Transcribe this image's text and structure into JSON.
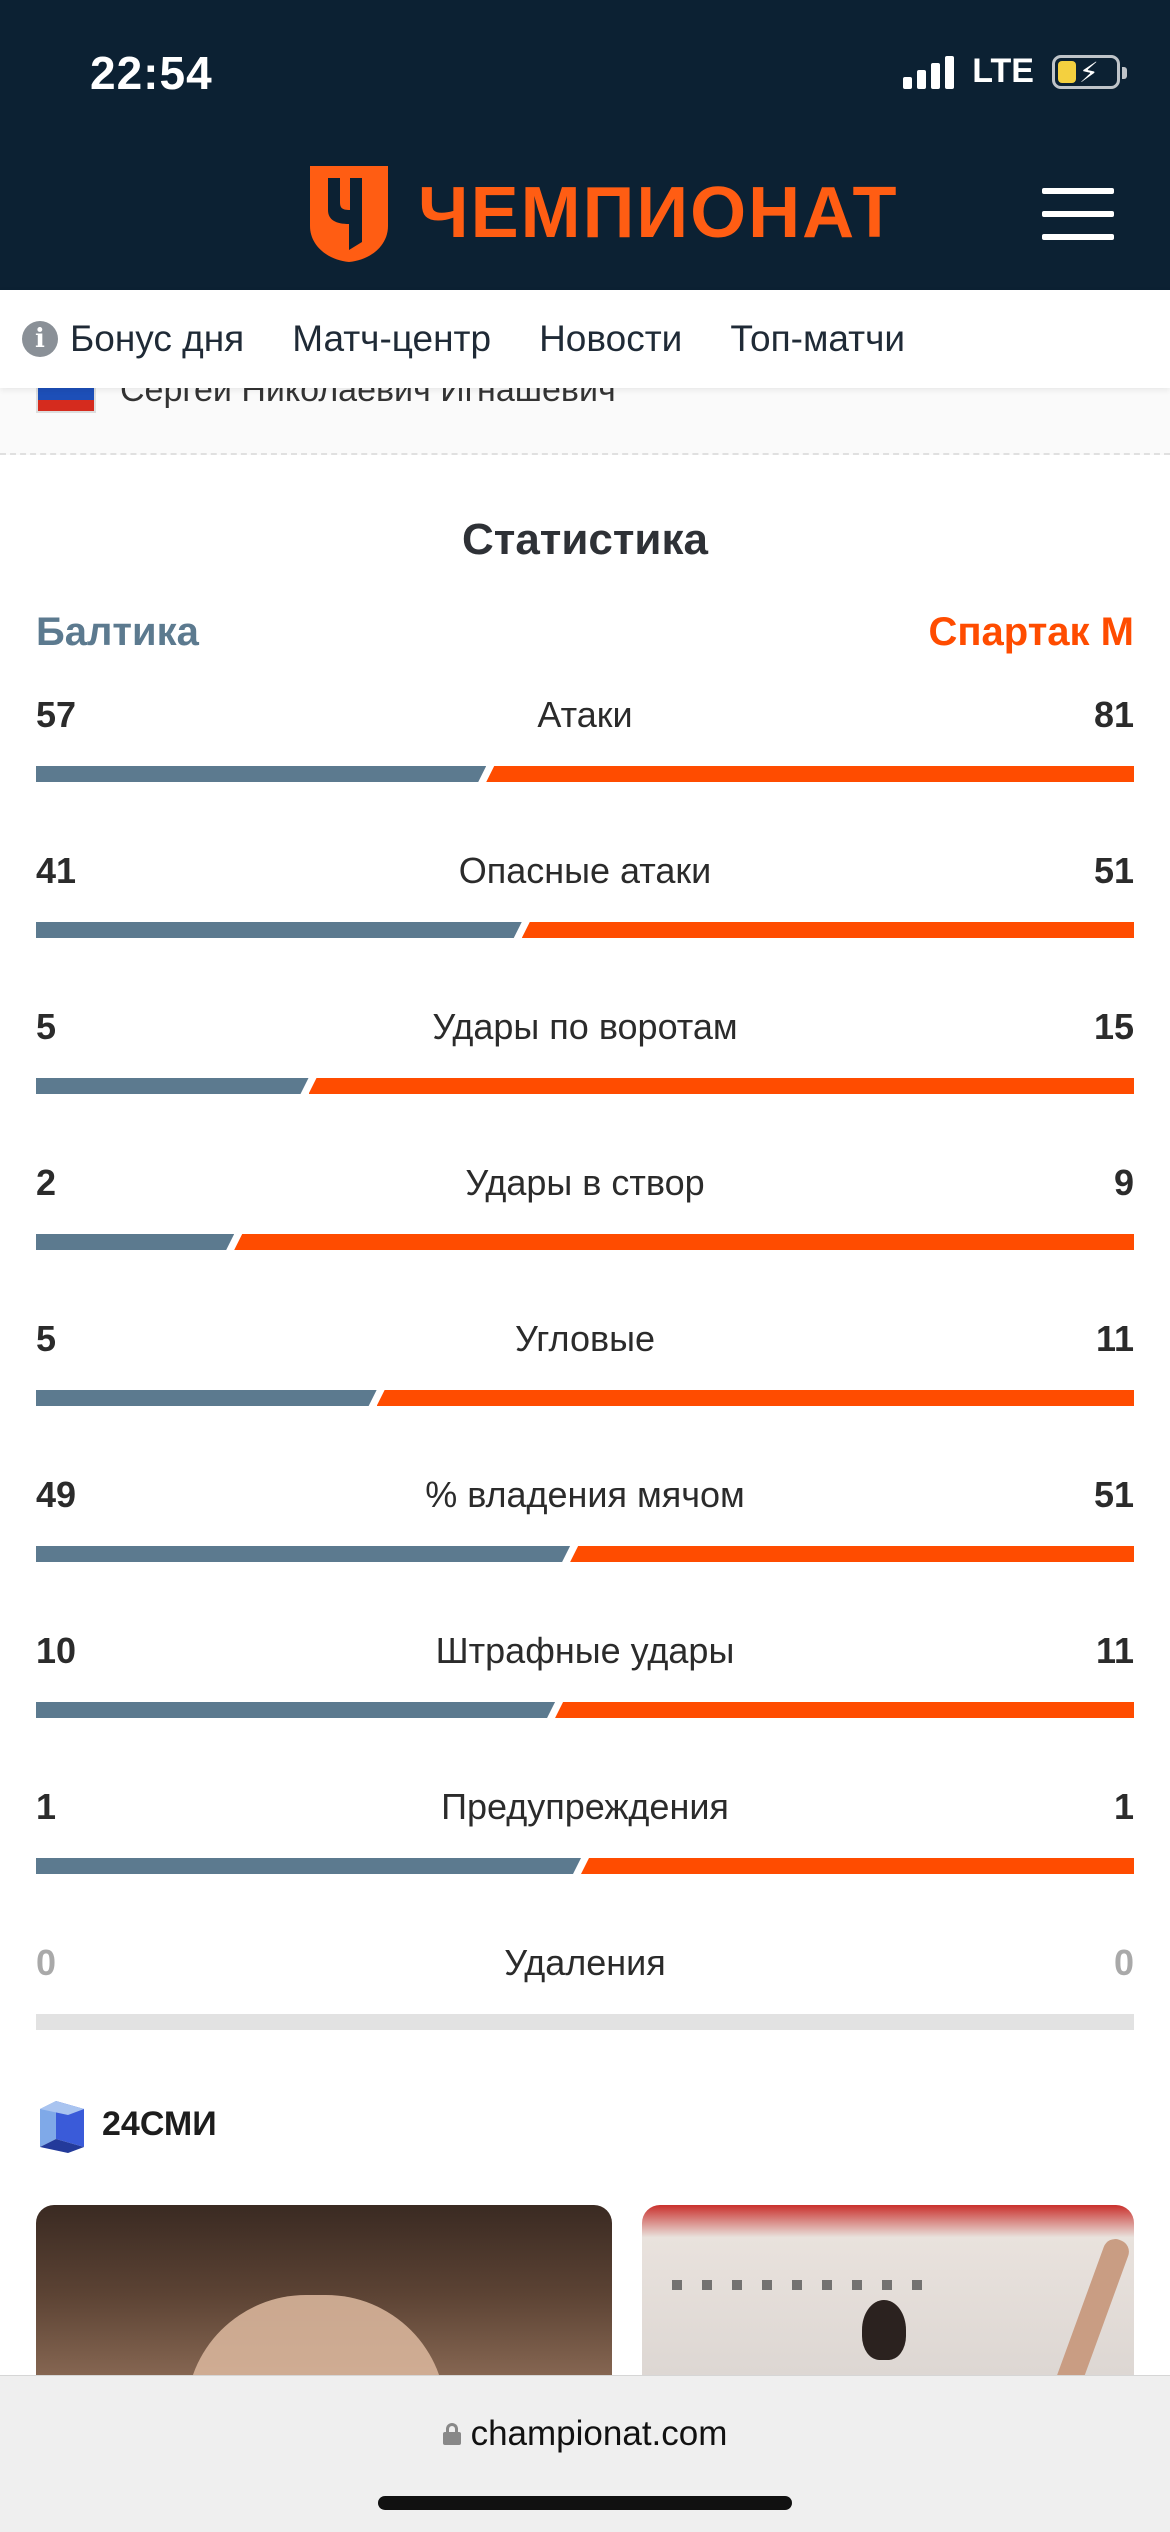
{
  "status_bar": {
    "time": "22:54",
    "network": "LTE"
  },
  "header": {
    "logo_text": "ЧЕМПИОНАТ",
    "colors": {
      "background": "#0c2133",
      "brand": "#ff5d13"
    }
  },
  "nav": {
    "items": [
      {
        "label": "Бонус дня",
        "icon": "info-icon"
      },
      {
        "label": "Матч-центр"
      },
      {
        "label": "Новости"
      },
      {
        "label": "Топ-матчи"
      }
    ]
  },
  "referee": {
    "name": "Сергей Николаевич Игнашевич",
    "flag": "russia-flag-icon"
  },
  "statistics": {
    "title": "Статистика",
    "home_team": "Балтика",
    "away_team": "Спартак М",
    "colors": {
      "home": "#5c7a8f",
      "away": "#ff4c00"
    },
    "rows": [
      {
        "label": "Атаки",
        "home": "57",
        "away": "81"
      },
      {
        "label": "Опасные атаки",
        "home": "41",
        "away": "51"
      },
      {
        "label": "Удары по воротам",
        "home": "5",
        "away": "15"
      },
      {
        "label": "Удары в створ",
        "home": "2",
        "away": "9"
      },
      {
        "label": "Угловые",
        "home": "5",
        "away": "11"
      },
      {
        "label": "% владения мячом",
        "home": "49",
        "away": "51"
      },
      {
        "label": "Штрафные удары",
        "home": "10",
        "away": "11"
      },
      {
        "label": "Предупреждения",
        "home": "1",
        "away": "1"
      },
      {
        "label": "Удаления",
        "home": "0",
        "away": "0"
      }
    ]
  },
  "smi": {
    "label": "24СМИ"
  },
  "browser": {
    "url": "championat.com"
  }
}
